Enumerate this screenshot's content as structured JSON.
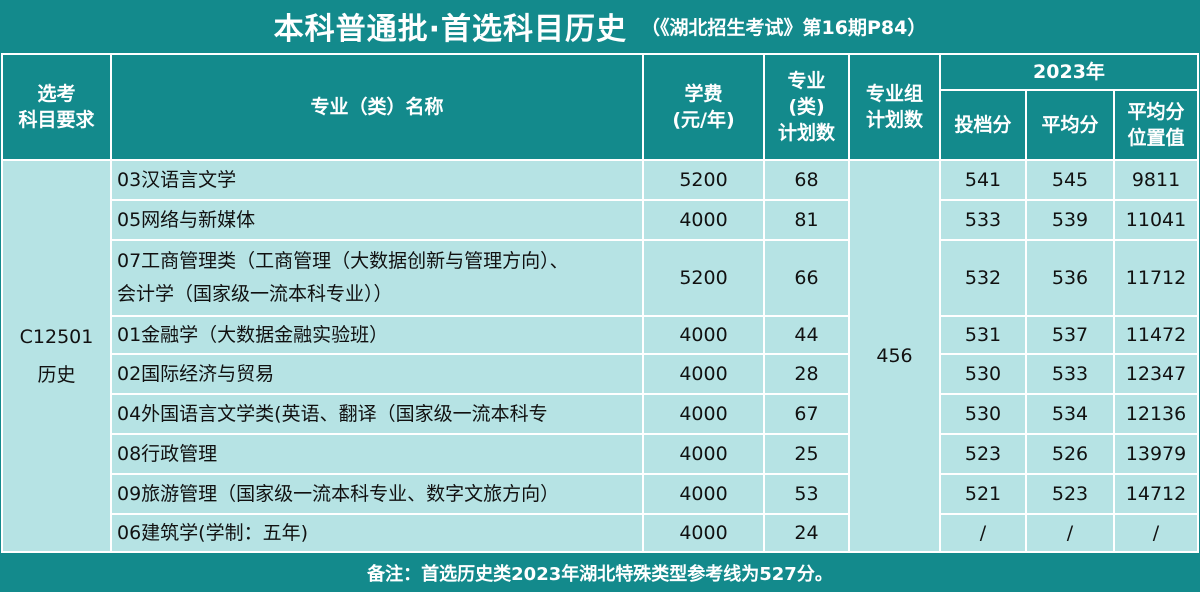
{
  "title": {
    "main": "本科普通批·首选科目历史",
    "sub": "（《湖北招生考试》第16期P84）"
  },
  "headers": {
    "subject_req": [
      "选考",
      "科目要求"
    ],
    "major_name": "专业（类）名称",
    "tuition": [
      "学费",
      "(元/年)"
    ],
    "major_plan": [
      "专业",
      "(类)",
      "计划数"
    ],
    "group_plan": [
      "专业组",
      "计划数"
    ],
    "year": "2023年",
    "score_file": "投档分",
    "score_avg": "平均分",
    "rank_avg": [
      "平均分",
      "位置值"
    ]
  },
  "group": {
    "code": "C12501",
    "subject": "历史",
    "plan": "456"
  },
  "rows": [
    {
      "name": "03汉语言文学",
      "name2": "",
      "tuition": "5200",
      "plan": "68",
      "file": "541",
      "avg": "545",
      "rank": "9811"
    },
    {
      "name": "05网络与新媒体",
      "name2": "",
      "tuition": "4000",
      "plan": "81",
      "file": "533",
      "avg": "539",
      "rank": "11041"
    },
    {
      "name": "07工商管理类（工商管理（大数据创新与管理方向）、",
      "name2": "会计学（国家级一流本科专业））",
      "tuition": "5200",
      "plan": "66",
      "file": "532",
      "avg": "536",
      "rank": "11712"
    },
    {
      "name": "01金融学（大数据金融实验班）",
      "name2": "",
      "tuition": "4000",
      "plan": "44",
      "file": "531",
      "avg": "537",
      "rank": "11472"
    },
    {
      "name": "02国际经济与贸易",
      "name2": "",
      "tuition": "4000",
      "plan": "28",
      "file": "530",
      "avg": "533",
      "rank": "12347"
    },
    {
      "name": "04外国语言文学类(英语、翻译（国家级一流本科专",
      "name2": "",
      "tuition": "4000",
      "plan": "67",
      "file": "530",
      "avg": "534",
      "rank": "12136"
    },
    {
      "name": "08行政管理",
      "name2": "",
      "tuition": "4000",
      "plan": "25",
      "file": "523",
      "avg": "526",
      "rank": "13979"
    },
    {
      "name": "09旅游管理（国家级一流本科专业、数字文旅方向）",
      "name2": "",
      "tuition": "4000",
      "plan": "53",
      "file": "521",
      "avg": "523",
      "rank": "14712"
    },
    {
      "name": "06建筑学(学制：五年)",
      "name2": "",
      "tuition": "4000",
      "plan": "24",
      "file": "/",
      "avg": "/",
      "rank": "/"
    }
  ],
  "footer": "备注：首选历史类2023年湖北特殊类型参考线为527分。"
}
